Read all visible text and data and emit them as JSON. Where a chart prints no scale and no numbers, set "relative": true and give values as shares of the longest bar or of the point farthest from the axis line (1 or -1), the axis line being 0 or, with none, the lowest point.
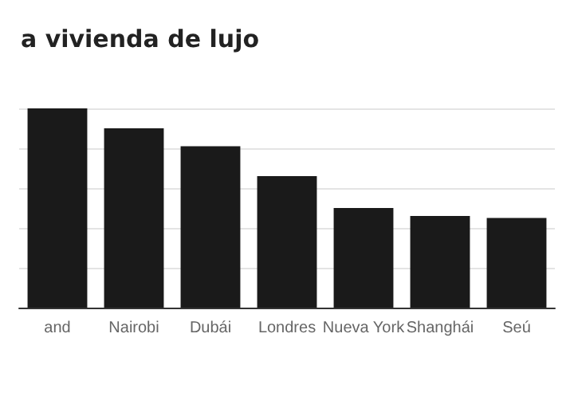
{
  "chart_data": {
    "type": "bar",
    "title": "a vivienda de lujo",
    "relative": true,
    "grid": "y",
    "categories": [
      "and",
      "Nairobi",
      "Dubái",
      "Londres",
      "Nueva York",
      "Shanghái",
      "Seú"
    ],
    "values": [
      1,
      0.9,
      0.81,
      0.66,
      0.5,
      0.46,
      0.45
    ],
    "color": "#1a1a1a"
  }
}
